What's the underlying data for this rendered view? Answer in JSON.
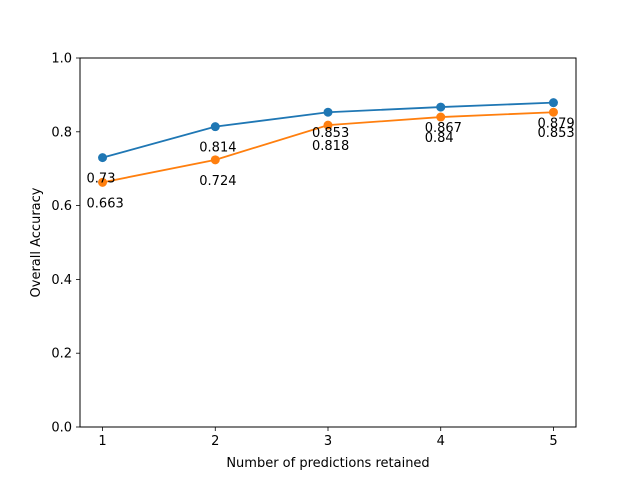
{
  "chart_data": {
    "type": "line",
    "title": "",
    "xlabel": "Number of predictions retained",
    "ylabel": "Overall Accuracy",
    "x": [
      1,
      2,
      3,
      4,
      5
    ],
    "xlim": [
      0.8,
      5.2
    ],
    "ylim": [
      0.0,
      1.0
    ],
    "x_ticks": [
      "1",
      "2",
      "3",
      "4",
      "5"
    ],
    "y_ticks": [
      "0.0",
      "0.2",
      "0.4",
      "0.6",
      "0.8",
      "1.0"
    ],
    "grid": false,
    "legend": null,
    "series": [
      {
        "values": [
          0.73,
          0.814,
          0.853,
          0.867,
          0.879
        ],
        "labels": [
          "0.73",
          "0.814",
          "0.853",
          "0.867",
          "0.879"
        ],
        "color": "#1f77b4",
        "marker": "circle"
      },
      {
        "values": [
          0.663,
          0.724,
          0.818,
          0.84,
          0.853
        ],
        "labels": [
          "0.663",
          "0.724",
          "0.818",
          "0.84",
          "0.853"
        ],
        "color": "#ff7f0e",
        "marker": "circle"
      }
    ]
  }
}
